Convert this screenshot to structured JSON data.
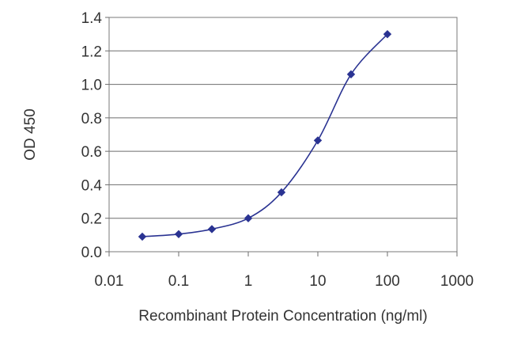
{
  "chart_data": {
    "type": "line",
    "xlabel": "Recombinant Protein Concentration (ng/ml)",
    "ylabel": "OD 450",
    "x_scale": "log",
    "xlim": [
      0.01,
      1000
    ],
    "ylim": [
      0.0,
      1.4
    ],
    "x_ticks": [
      "0.01",
      "0.1",
      "1",
      "10",
      "100",
      "1000"
    ],
    "y_ticks": [
      "0.0",
      "0.2",
      "0.4",
      "0.6",
      "0.8",
      "1.0",
      "1.2",
      "1.4"
    ],
    "grid": "horizontal",
    "series": [
      {
        "color": "#2a3392",
        "x": [
          0.03,
          0.1,
          0.3,
          1,
          3,
          10,
          30,
          100
        ],
        "y": [
          0.09,
          0.105,
          0.135,
          0.2,
          0.355,
          0.665,
          1.06,
          1.3
        ]
      }
    ]
  }
}
